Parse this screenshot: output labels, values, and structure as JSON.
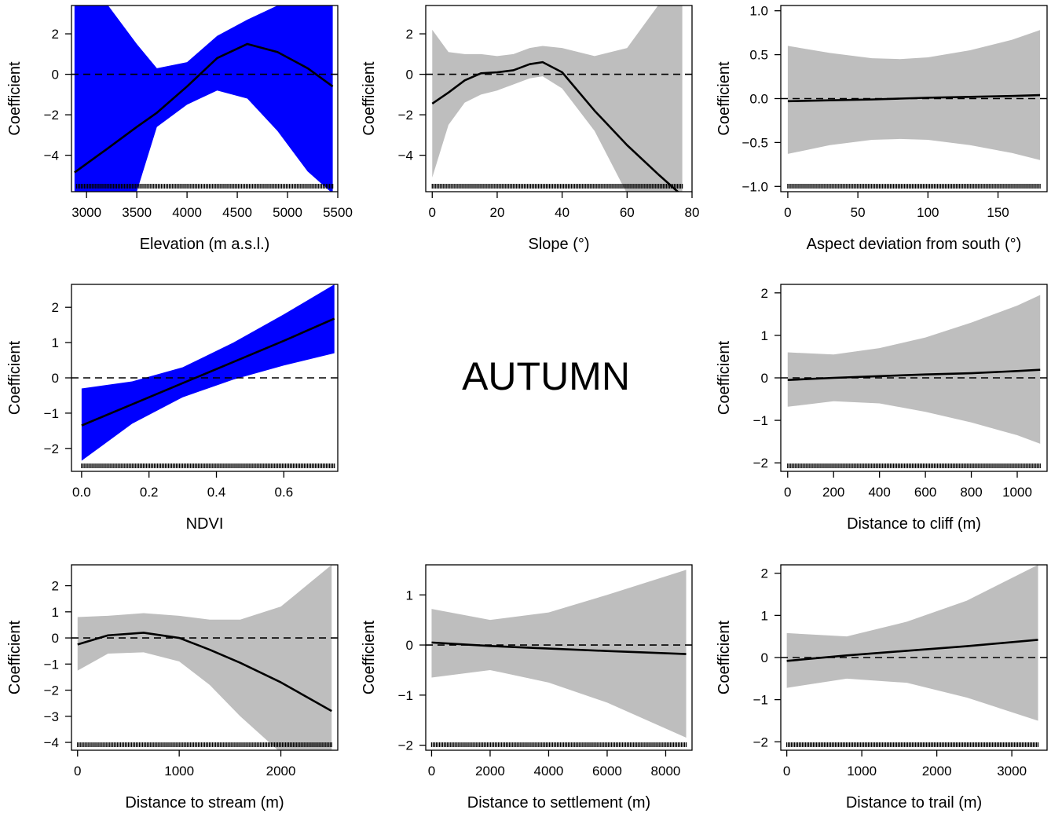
{
  "center_label": "AUTUMN",
  "colors": {
    "band_blue": "#0000ff",
    "band_gray": "#bebebe",
    "line": "#000000"
  },
  "chart_data": [
    {
      "type": "line",
      "band": "blue",
      "xlabel": "Elevation (m a.s.l.)",
      "ylabel": "Coefficient",
      "xlim": [
        2850,
        5500
      ],
      "ylim": [
        -5.8,
        3.4
      ],
      "xticks": [
        3000,
        3500,
        4000,
        4500,
        5000,
        5500
      ],
      "yticks": [
        -4,
        -2,
        0,
        2
      ],
      "ytick_labels": [
        "−4",
        "−2",
        "0",
        "2"
      ],
      "rug": [
        2900,
        5450
      ],
      "x": [
        2880,
        3200,
        3500,
        3700,
        4000,
        4300,
        4600,
        4900,
        5200,
        5450
      ],
      "y": [
        -4.85,
        -3.7,
        -2.6,
        -1.9,
        -0.6,
        0.8,
        1.5,
        1.1,
        0.3,
        -0.6
      ],
      "lower": [
        -5.9,
        -5.9,
        -5.8,
        -2.6,
        -1.5,
        -0.8,
        -1.2,
        -2.8,
        -4.8,
        -5.9
      ],
      "upper": [
        3.5,
        3.5,
        1.5,
        0.3,
        0.6,
        1.9,
        2.7,
        3.4,
        3.5,
        3.5
      ]
    },
    {
      "type": "line",
      "band": "gray",
      "xlabel": "Slope (°)",
      "ylabel": "Coefficient",
      "xlim": [
        -2,
        80
      ],
      "ylim": [
        -5.8,
        3.4
      ],
      "xticks": [
        0,
        20,
        40,
        60,
        80
      ],
      "yticks": [
        -4,
        -2,
        0,
        2
      ],
      "ytick_labels": [
        "−4",
        "−2",
        "0",
        "2"
      ],
      "rug": [
        0,
        77
      ],
      "x": [
        0,
        5,
        10,
        15,
        20,
        25,
        30,
        34,
        40,
        50,
        60,
        70,
        77
      ],
      "y": [
        -1.45,
        -0.9,
        -0.3,
        0.05,
        0.1,
        0.2,
        0.5,
        0.6,
        0.1,
        -1.8,
        -3.5,
        -5.0,
        -6.0
      ],
      "lower": [
        -5.1,
        -2.5,
        -1.4,
        -1.0,
        -0.8,
        -0.5,
        -0.2,
        -0.1,
        -0.7,
        -2.8,
        -5.9,
        -5.9,
        -5.9
      ],
      "upper": [
        2.2,
        1.1,
        1.0,
        1.0,
        0.9,
        1.0,
        1.3,
        1.4,
        1.3,
        0.9,
        1.3,
        3.5,
        3.5
      ]
    },
    {
      "type": "line",
      "band": "gray",
      "xlabel": "Aspect deviation from south (°)",
      "ylabel": "Coefficient",
      "xlim": [
        -5,
        185
      ],
      "ylim": [
        -1.06,
        1.06
      ],
      "xticks": [
        0,
        50,
        100,
        150
      ],
      "yticks": [
        -1.0,
        -0.5,
        0.0,
        0.5,
        1.0
      ],
      "ytick_labels": [
        "−1.0",
        "−0.5",
        "0.0",
        "0.5",
        "1.0"
      ],
      "rug": [
        0,
        180
      ],
      "x": [
        0,
        30,
        60,
        80,
        100,
        130,
        160,
        180
      ],
      "y": [
        -0.03,
        -0.02,
        -0.01,
        0.0,
        0.01,
        0.02,
        0.03,
        0.04
      ],
      "lower": [
        -0.63,
        -0.53,
        -0.47,
        -0.46,
        -0.47,
        -0.53,
        -0.62,
        -0.7
      ],
      "upper": [
        0.6,
        0.52,
        0.46,
        0.45,
        0.47,
        0.55,
        0.67,
        0.78
      ]
    },
    {
      "type": "line",
      "band": "blue",
      "xlabel": "NDVI",
      "ylabel": "Coefficient",
      "xlim": [
        -0.03,
        0.76
      ],
      "ylim": [
        -2.65,
        2.65
      ],
      "xticks": [
        0.0,
        0.2,
        0.4,
        0.6
      ],
      "xtick_labels": [
        "0.0",
        "0.2",
        "0.4",
        "0.6"
      ],
      "yticks": [
        -2,
        -1,
        0,
        1,
        2
      ],
      "ytick_labels": [
        "−2",
        "−1",
        "0",
        "1",
        "2"
      ],
      "rug": [
        0,
        0.75
      ],
      "x": [
        0.0,
        0.15,
        0.3,
        0.45,
        0.6,
        0.75
      ],
      "y": [
        -1.35,
        -0.75,
        -0.15,
        0.45,
        1.05,
        1.68
      ],
      "lower": [
        -2.35,
        -1.3,
        -0.55,
        -0.05,
        0.35,
        0.7
      ],
      "upper": [
        -0.3,
        -0.1,
        0.3,
        1.0,
        1.8,
        2.65
      ]
    },
    {
      "type": "line",
      "band": "gray",
      "xlabel": "Distance to cliff (m)",
      "ylabel": "Coefficient",
      "xlim": [
        -30,
        1130
      ],
      "ylim": [
        -2.2,
        2.2
      ],
      "xticks": [
        0,
        200,
        400,
        600,
        800,
        1000
      ],
      "yticks": [
        -2,
        -1,
        0,
        1,
        2
      ],
      "ytick_labels": [
        "−2",
        "−1",
        "0",
        "1",
        "2"
      ],
      "rug": [
        0,
        1100
      ],
      "x": [
        0,
        200,
        400,
        600,
        800,
        1000,
        1100
      ],
      "y": [
        -0.05,
        0.0,
        0.04,
        0.08,
        0.11,
        0.16,
        0.19
      ],
      "lower": [
        -0.68,
        -0.55,
        -0.6,
        -0.8,
        -1.05,
        -1.35,
        -1.55
      ],
      "upper": [
        0.6,
        0.55,
        0.7,
        0.95,
        1.3,
        1.7,
        1.95
      ]
    },
    {
      "type": "line",
      "band": "gray",
      "xlabel": "Distance to stream (m)",
      "ylabel": "Coefficient",
      "xlim": [
        -60,
        2560
      ],
      "ylim": [
        -4.3,
        2.8
      ],
      "xticks": [
        0,
        1000,
        2000
      ],
      "yticks": [
        -4,
        -3,
        -2,
        -1,
        0,
        1,
        2
      ],
      "ytick_labels": [
        "−4",
        "−3",
        "−2",
        "−1",
        "0",
        "1",
        "2"
      ],
      "rug": [
        0,
        2500
      ],
      "x": [
        0,
        300,
        650,
        1000,
        1300,
        1600,
        2000,
        2500
      ],
      "y": [
        -0.25,
        0.1,
        0.2,
        0.0,
        -0.45,
        -0.95,
        -1.7,
        -2.8
      ],
      "lower": [
        -1.25,
        -0.6,
        -0.55,
        -0.9,
        -1.8,
        -3.0,
        -4.4,
        -4.4
      ],
      "upper": [
        0.8,
        0.85,
        0.95,
        0.85,
        0.7,
        0.7,
        1.2,
        2.8
      ]
    },
    {
      "type": "line",
      "band": "gray",
      "xlabel": "Distance to settlement (m)",
      "ylabel": "Coefficient",
      "xlim": [
        -200,
        8900
      ],
      "ylim": [
        -2.1,
        1.6
      ],
      "xticks": [
        0,
        2000,
        4000,
        6000,
        8000
      ],
      "yticks": [
        -2,
        -1,
        0,
        1
      ],
      "ytick_labels": [
        "−2",
        "−1",
        "0",
        "1"
      ],
      "rug": [
        0,
        8700
      ],
      "x": [
        0,
        2000,
        4000,
        6000,
        8700
      ],
      "y": [
        0.05,
        -0.02,
        -0.07,
        -0.12,
        -0.18
      ],
      "lower": [
        -0.65,
        -0.5,
        -0.75,
        -1.15,
        -1.85
      ],
      "upper": [
        0.72,
        0.5,
        0.65,
        1.0,
        1.5
      ]
    },
    {
      "type": "line",
      "band": "gray",
      "xlabel": "Distance to trail (m)",
      "ylabel": "Coefficient",
      "xlim": [
        -80,
        3470
      ],
      "ylim": [
        -2.2,
        2.2
      ],
      "xticks": [
        0,
        1000,
        2000,
        3000
      ],
      "yticks": [
        -2,
        -1,
        0,
        1,
        2
      ],
      "ytick_labels": [
        "−2",
        "−1",
        "0",
        "1",
        "2"
      ],
      "rug": [
        0,
        3350
      ],
      "x": [
        0,
        800,
        1600,
        2400,
        3350
      ],
      "y": [
        -0.08,
        0.05,
        0.16,
        0.27,
        0.42
      ],
      "lower": [
        -0.72,
        -0.5,
        -0.6,
        -0.95,
        -1.5
      ],
      "upper": [
        0.58,
        0.5,
        0.85,
        1.35,
        2.2
      ]
    }
  ]
}
